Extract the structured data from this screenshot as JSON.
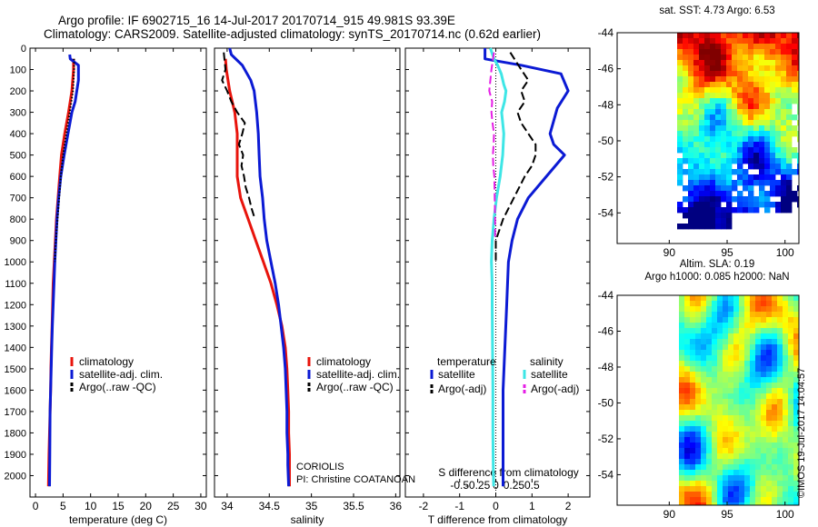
{
  "header": {
    "line1": "Argo profile: IF 6902715_16 14-Jul-2017 20170714_915 49.981S 93.39E",
    "line2": "Climatology: CARS2009. Satellite-adjusted climatology: synTS_20170714.nc (0.62d earlier)"
  },
  "credits": {
    "center": "CORIOLIS",
    "pi": "PI: Christine COATANOAN"
  },
  "stamp": "©IMOS 19-Jul-2017 14:04:57",
  "colors": {
    "red": "#e8140c",
    "blue": "#0b1ad4",
    "black": "#000000",
    "cyan": "#3ee6e6",
    "magenta": "#e61ee6"
  },
  "chart_data": [
    {
      "type": "line",
      "panel": "temperature",
      "xlabel": "temperature (deg C)",
      "ylabel": "",
      "xlim": [
        -1,
        31
      ],
      "ylim": [
        2100,
        0
      ],
      "y_inverted": true,
      "xticks": [
        0,
        5,
        10,
        15,
        20,
        25,
        30
      ],
      "yticks": [
        0,
        100,
        200,
        300,
        400,
        500,
        600,
        700,
        800,
        900,
        1000,
        1100,
        1200,
        1300,
        1400,
        1500,
        1600,
        1700,
        1800,
        1900,
        2000
      ],
      "legend": [
        "climatology",
        "satellite-adj. clim.",
        "Argo(..raw -QC)"
      ],
      "series": [
        {
          "name": "climatology",
          "color": "red",
          "style": "solid",
          "width": 3,
          "x": [
            6.9,
            6.9,
            6.6,
            6.0,
            5.3,
            4.7,
            4.4,
            4.1,
            3.8,
            3.6,
            3.4,
            3.2,
            3.1,
            3.0,
            2.9,
            2.8,
            2.75,
            2.65,
            2.55,
            2.45,
            2.35
          ],
          "y": [
            50,
            100,
            200,
            300,
            400,
            500,
            600,
            700,
            800,
            900,
            1000,
            1100,
            1200,
            1300,
            1400,
            1500,
            1600,
            1700,
            1800,
            1900,
            2050
          ]
        },
        {
          "name": "satellite-adj. clim.",
          "color": "blue",
          "style": "solid",
          "width": 3,
          "x": [
            6.2,
            6.3,
            7.8,
            7.8,
            7.2,
            6.6,
            5.9,
            5.2,
            4.6,
            4.2,
            3.9,
            3.7,
            3.5,
            3.35,
            3.2,
            3.05,
            2.95,
            2.85,
            2.75,
            2.65,
            2.6,
            2.55
          ],
          "y": [
            30,
            50,
            80,
            150,
            250,
            300,
            400,
            500,
            600,
            700,
            800,
            900,
            1000,
            1100,
            1200,
            1300,
            1400,
            1500,
            1600,
            1700,
            1900,
            2050
          ]
        },
        {
          "name": "Argo(..raw -QC)",
          "color": "black",
          "style": "dotted",
          "width": 2,
          "x": [
            7.0,
            7.0,
            6.8,
            6.2,
            5.6,
            5.0,
            4.6,
            4.3,
            4.0,
            3.7,
            3.5
          ],
          "y": [
            50,
            100,
            200,
            300,
            400,
            500,
            600,
            700,
            800,
            900,
            1000
          ]
        }
      ]
    },
    {
      "type": "line",
      "panel": "salinity",
      "xlabel": "salinity",
      "ylabel": "",
      "xlim": [
        33.85,
        36.05
      ],
      "ylim": [
        2100,
        0
      ],
      "y_inverted": true,
      "xticks": [
        34,
        34.5,
        35,
        35.5,
        36
      ],
      "legend": [
        "climatology",
        "satellite-adj. clim.",
        "Argo(..raw -QC)"
      ],
      "series": [
        {
          "name": "climatology",
          "color": "red",
          "style": "solid",
          "width": 3,
          "x": [
            33.98,
            33.99,
            34.03,
            34.09,
            34.12,
            34.12,
            34.12,
            34.16,
            34.25,
            34.34,
            34.43,
            34.52,
            34.59,
            34.65,
            34.69,
            34.71,
            34.72,
            34.73,
            34.73,
            34.74,
            34.74
          ],
          "y": [
            50,
            100,
            200,
            300,
            400,
            500,
            600,
            700,
            800,
            900,
            1000,
            1100,
            1200,
            1300,
            1400,
            1500,
            1600,
            1700,
            1800,
            1900,
            2050
          ]
        },
        {
          "name": "satellite-adj. clim.",
          "color": "blue",
          "style": "solid",
          "width": 3,
          "x": [
            34.03,
            34.05,
            34.18,
            34.28,
            34.32,
            34.35,
            34.37,
            34.38,
            34.39,
            34.42,
            34.44,
            34.47,
            34.52,
            34.57,
            34.61,
            34.64,
            34.67,
            34.69,
            34.7,
            34.71,
            34.71,
            34.72,
            34.72,
            34.73
          ],
          "y": [
            0,
            30,
            80,
            150,
            200,
            300,
            400,
            500,
            600,
            700,
            800,
            900,
            1000,
            1100,
            1200,
            1300,
            1400,
            1500,
            1600,
            1700,
            1800,
            1900,
            1950,
            2050
          ]
        },
        {
          "name": "Argo(..raw -QC)",
          "color": "black",
          "style": "dashed",
          "width": 2,
          "x": [
            33.96,
            33.98,
            33.94,
            34.0,
            34.05,
            34.12,
            34.21,
            34.18,
            34.14,
            34.19,
            34.17,
            34.2,
            34.22,
            34.26,
            34.29,
            34.33
          ],
          "y": [
            20,
            100,
            150,
            200,
            250,
            300,
            350,
            400,
            450,
            500,
            550,
            600,
            650,
            700,
            750,
            800
          ]
        }
      ]
    },
    {
      "type": "line",
      "panel": "difference",
      "xlabel": "T difference from climatology",
      "top_xlabel": "S difference from climatology",
      "xlim": [
        -2.5,
        2.6
      ],
      "ylim": [
        2100,
        0
      ],
      "y_inverted": true,
      "xticks": [
        -2,
        -1,
        0,
        1,
        2
      ],
      "top_xticks": [
        -0.5,
        -0.25,
        0,
        0.25,
        0.5
      ],
      "legend_title_left": "temperature",
      "legend_title_right": "salinity",
      "legend": [
        "satellite",
        "Argo(-adj)",
        "satellite",
        "Argo(-adj)"
      ],
      "series": [
        {
          "name": "temperature satellite",
          "color": "blue",
          "style": "solid",
          "width": 3,
          "x": [
            -0.3,
            -0.3,
            0.7,
            1.8,
            2.0,
            1.7,
            1.5,
            1.6,
            1.9,
            1.4,
            0.9,
            0.6,
            0.45,
            0.35,
            0.3,
            0.25,
            0.2,
            0.2,
            0.2,
            0.2,
            0.2,
            0.2
          ],
          "y": [
            0,
            50,
            80,
            120,
            200,
            280,
            400,
            450,
            500,
            600,
            700,
            800,
            900,
            1000,
            1200,
            1400,
            1600,
            1700,
            1800,
            1900,
            2000,
            2050
          ]
        },
        {
          "name": "temperature Argo(-adj)",
          "color": "black",
          "style": "dashed",
          "width": 2,
          "x": [
            0.4,
            0.7,
            0.9,
            0.7,
            0.8,
            0.6,
            0.7,
            0.9,
            1.1,
            1.1,
            1.0,
            0.8,
            0.5,
            0.2,
            0.0,
            0.0
          ],
          "y": [
            20,
            100,
            150,
            200,
            250,
            300,
            350,
            400,
            450,
            500,
            550,
            600,
            700,
            800,
            900,
            1000
          ]
        },
        {
          "name": "salinity satellite",
          "color": "cyan",
          "style": "solid",
          "width": 3,
          "x": [
            -0.15,
            -0.05,
            0.05,
            0.15,
            0.22,
            0.28,
            0.24,
            0.16,
            0.22,
            0.19,
            0.12,
            0.02,
            -0.05,
            -0.1,
            -0.12,
            -0.1,
            -0.1,
            -0.09,
            -0.08,
            -0.08,
            -0.07,
            -0.06
          ],
          "y": [
            0,
            50,
            80,
            120,
            170,
            200,
            250,
            300,
            400,
            500,
            600,
            700,
            800,
            900,
            1000,
            1100,
            1200,
            1400,
            1600,
            1800,
            1950,
            2050
          ]
        },
        {
          "name": "salinity Argo(-adj)",
          "color": "magenta",
          "style": "dashed",
          "width": 2,
          "x": [
            -0.05,
            -0.12,
            -0.15,
            -0.18,
            -0.1,
            -0.12,
            -0.09,
            -0.05,
            -0.06,
            -0.08,
            -0.07,
            -0.04,
            -0.03,
            -0.02,
            -0.02
          ],
          "y": [
            20,
            100,
            150,
            200,
            250,
            300,
            350,
            400,
            450,
            500,
            550,
            600,
            700,
            800,
            900
          ]
        }
      ]
    },
    {
      "type": "heatmap",
      "panel": "sst-map",
      "title": "sat. SST: 4.73 Argo: 6.53",
      "xticks": [
        90,
        95,
        100
      ],
      "yticks": [
        -44,
        -46,
        -48,
        -50,
        -52,
        -54
      ],
      "xlim": [
        85.5,
        101.2
      ],
      "ylim": [
        -55.7,
        -44
      ]
    },
    {
      "type": "heatmap",
      "panel": "sla-map",
      "title": "Altim. SLA: 0.19",
      "subtitle": "Argo h1000: 0.085 h2000: NaN",
      "xticks": [
        90,
        95,
        100
      ],
      "yticks": [
        -44,
        -46,
        -48,
        -50,
        -52,
        -54
      ],
      "xlim": [
        85.5,
        101.2
      ],
      "ylim": [
        -55.7,
        -44
      ]
    }
  ]
}
